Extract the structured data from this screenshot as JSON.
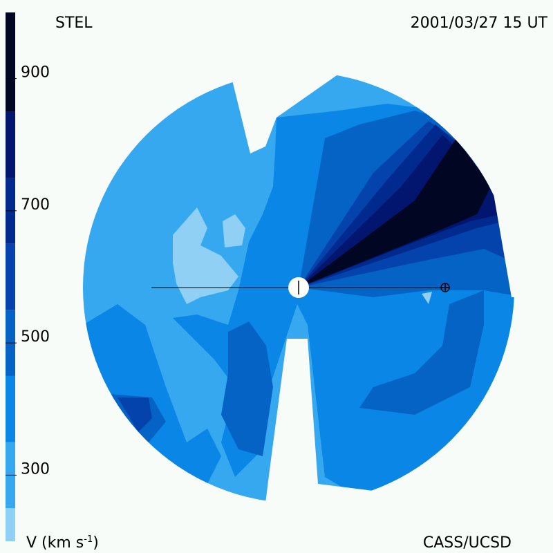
{
  "chart_data": {
    "type": "heatmap",
    "title": "STEL",
    "timestamp": "2001/03/27 15 UT",
    "credit": "CASS/UCSD",
    "colorbar": {
      "label_prefix": "V (km s",
      "label_exp": "-1",
      "label_suffix": ")",
      "range": [
        200,
        1000
      ],
      "ticks": [
        {
          "value": 300,
          "label": "300"
        },
        {
          "value": 500,
          "label": "500"
        },
        {
          "value": 700,
          "label": "700"
        },
        {
          "value": 900,
          "label": "900"
        }
      ],
      "levels": [
        {
          "from": 200,
          "to": 250,
          "color": "#8fd0f4"
        },
        {
          "from": 250,
          "to": 350,
          "color": "#36a8ef"
        },
        {
          "from": 350,
          "to": 450,
          "color": "#0a86e6"
        },
        {
          "from": 450,
          "to": 550,
          "color": "#0563c5"
        },
        {
          "from": 550,
          "to": 650,
          "color": "#0443ac"
        },
        {
          "from": 650,
          "to": 750,
          "color": "#002a8e"
        },
        {
          "from": 750,
          "to": 850,
          "color": "#021670"
        },
        {
          "from": 850,
          "to": 1000,
          "color": "#010623"
        }
      ]
    }
  }
}
